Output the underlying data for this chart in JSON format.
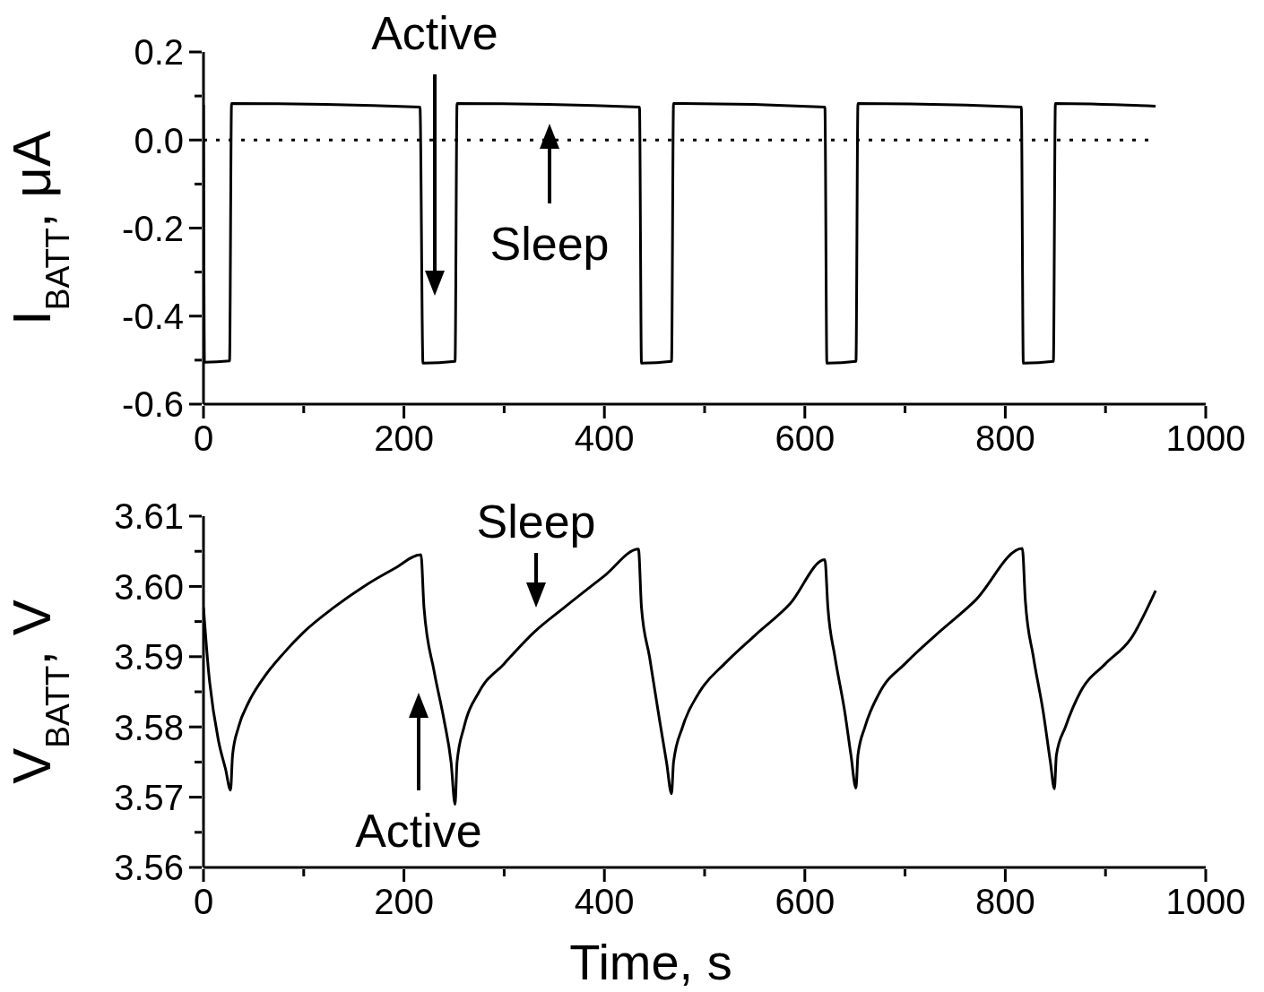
{
  "chart_data": [
    {
      "type": "line",
      "ylabel": "I$_{BATT}$, μA",
      "series": [
        {
          "color": "#000000",
          "x": [
            0,
            1,
            26,
            28,
            216,
            219,
            251,
            253,
            435,
            437,
            467,
            469,
            620,
            622,
            651,
            653,
            816,
            818,
            848,
            850,
            950
          ],
          "values": [
            0.08,
            -0.505,
            -0.502,
            0.083,
            0.075,
            -0.507,
            -0.503,
            0.083,
            0.075,
            -0.507,
            -0.503,
            0.083,
            0.075,
            -0.507,
            -0.503,
            0.083,
            0.075,
            -0.507,
            -0.503,
            0.083,
            0.077
          ]
        }
      ],
      "xlim": [
        0,
        1000
      ],
      "xticks": [
        0,
        {
          "value": 100,
          "label": null
        },
        200,
        {
          "value": 300,
          "label": null
        },
        400,
        {
          "value": 500,
          "label": null
        },
        600,
        {
          "value": 700,
          "label": null
        },
        800,
        {
          "value": 900,
          "label": null
        },
        1000
      ],
      "ylim": [
        -0.6,
        0.2
      ],
      "yticks": [
        -0.6,
        {
          "value": -0.5,
          "label": null
        },
        -0.4,
        {
          "value": -0.3,
          "label": null
        },
        -0.2,
        {
          "value": -0.1,
          "label": null
        },
        {
          "value": 0,
          "label": "0.0"
        },
        {
          "value": 0.1,
          "label": null
        },
        0.2
      ],
      "ref_lines": [
        {
          "axis": "y",
          "value": 0,
          "color": "#000000",
          "line_style": "dotted"
        }
      ],
      "annotations": [
        "Active",
        "Sleep"
      ],
      "grid": false,
      "legend": false,
      "marker": "none",
      "line_style": "solid"
    },
    {
      "type": "line",
      "xlabel": "Time, s",
      "ylabel": "V$_{BATT}$, V",
      "series": [
        {
          "color": "#000000",
          "x": [
            0,
            5,
            15,
            22,
            27,
            29,
            35,
            45,
            60,
            80,
            100,
            130,
            160,
            190,
            217,
            220,
            230,
            240,
            247,
            251,
            253,
            260,
            275,
            300,
            330,
            360,
            400,
            434,
            437,
            445,
            455,
            462,
            467,
            469,
            478,
            495,
            520,
            550,
            585,
            620,
            623,
            630,
            640,
            646,
            651,
            653,
            660,
            675,
            700,
            730,
            770,
            817,
            820,
            828,
            838,
            845,
            849,
            851,
            860,
            875,
            900,
            925,
            950
          ],
          "values": [
            3.597,
            3.588,
            3.578,
            3.574,
            3.571,
            3.576,
            3.58,
            3.5835,
            3.587,
            3.5905,
            3.5935,
            3.597,
            3.6,
            3.6025,
            3.6045,
            3.597,
            3.588,
            3.581,
            3.575,
            3.569,
            3.575,
            3.58,
            3.585,
            3.589,
            3.5935,
            3.597,
            3.6015,
            3.6053,
            3.597,
            3.59,
            3.581,
            3.575,
            3.5705,
            3.575,
            3.58,
            3.585,
            3.589,
            3.593,
            3.5975,
            3.6038,
            3.597,
            3.59,
            3.582,
            3.576,
            3.5713,
            3.576,
            3.58,
            3.585,
            3.589,
            3.593,
            3.598,
            3.6054,
            3.598,
            3.59,
            3.582,
            3.575,
            3.5712,
            3.576,
            3.58,
            3.585,
            3.589,
            3.5925,
            3.5994
          ]
        }
      ],
      "xlim": [
        0,
        1000
      ],
      "xticks": [
        0,
        {
          "value": 100,
          "label": null
        },
        200,
        {
          "value": 300,
          "label": null
        },
        400,
        {
          "value": 500,
          "label": null
        },
        600,
        {
          "value": 700,
          "label": null
        },
        800,
        {
          "value": 900,
          "label": null
        },
        1000
      ],
      "ylim": [
        3.56,
        3.61
      ],
      "yticks": [
        3.56,
        {
          "value": 3.565,
          "label": null
        },
        3.57,
        {
          "value": 3.575,
          "label": null
        },
        3.58,
        {
          "value": 3.585,
          "label": null
        },
        3.59,
        {
          "value": 3.595,
          "label": null
        },
        {
          "value": 3.6,
          "label": "3.60"
        },
        {
          "value": 3.605,
          "label": null
        },
        3.61
      ],
      "annotations": [
        "Sleep",
        "Active"
      ],
      "grid": false,
      "legend": false,
      "marker": "none",
      "line_style": "solid"
    }
  ]
}
